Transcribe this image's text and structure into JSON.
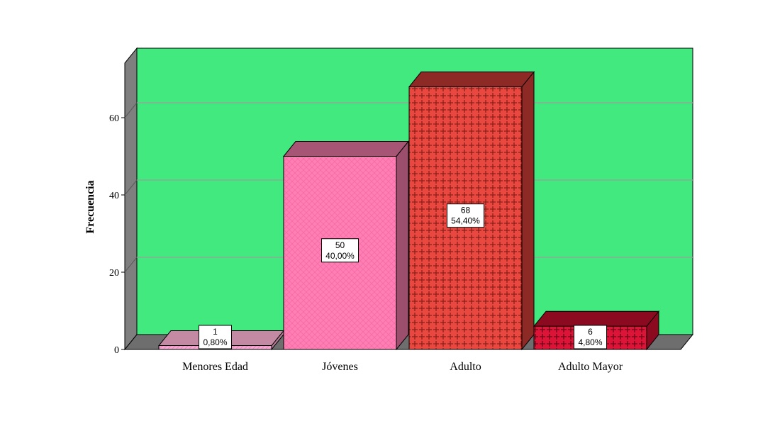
{
  "chart_data": {
    "type": "bar",
    "style": "3d",
    "categories": [
      "Menores Edad",
      "Jóvenes",
      "Adulto",
      "Adulto Mayor"
    ],
    "values": [
      1,
      50,
      68,
      6
    ],
    "percent_labels": [
      "0,80%",
      "40,00%",
      "54,40%",
      "4,80%"
    ],
    "value_labels": [
      "1",
      "50",
      "68",
      "6"
    ],
    "ylabel": "Frecuencia",
    "xlabel": "",
    "yticks": [
      "0",
      "20",
      "40",
      "60"
    ],
    "ylim": [
      0,
      78
    ],
    "grid": true,
    "legend": "none",
    "colors": {
      "background": "#42e97f",
      "wall_side": "#7f7f7f",
      "floor": "#6e6e6e",
      "gridline": "#9aa09a",
      "bars": [
        {
          "front": "#f6a9d2",
          "top": "#c48aa4",
          "side": "#b07a92"
        },
        {
          "front": "#ff7fb4",
          "top": "#a65674",
          "side": "#9b4f6c"
        },
        {
          "front": "#e8483f",
          "top": "#8e2a25",
          "side": "#8e2a25"
        },
        {
          "front": "#dc1438",
          "top": "#8b0a1f",
          "side": "#8b0a1f"
        }
      ]
    }
  }
}
